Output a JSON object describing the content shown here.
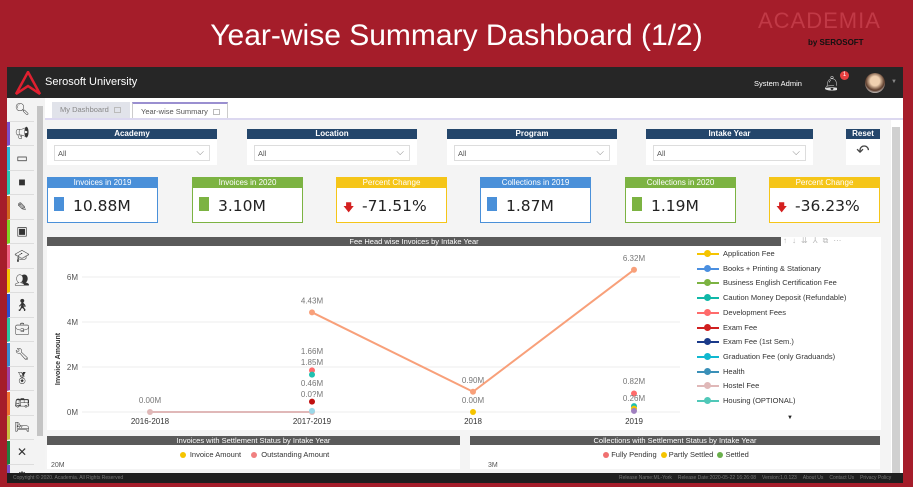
{
  "slide": {
    "title": "Year-wise Summary Dashboard (1/2)",
    "brand": "ACADEMIA",
    "brand_by": "by SEROSOFT"
  },
  "header": {
    "app_name": "Serosoft University",
    "user": "System Admin",
    "notifications": "1"
  },
  "sidebar": {
    "items": [
      {
        "icon": "megaphone-icon",
        "color": "#7b4fc9"
      },
      {
        "icon": "id-card-icon",
        "color": "#29b6d6"
      },
      {
        "icon": "book-icon",
        "color": "#2ac4b0"
      },
      {
        "icon": "edit-icon",
        "color": "#d2691e"
      },
      {
        "icon": "money-icon",
        "color": "#7ed321"
      },
      {
        "icon": "graduation-cap-icon",
        "color": "#f06080"
      },
      {
        "icon": "users-icon",
        "color": "#f5c400"
      },
      {
        "icon": "person-icon",
        "color": "#2a4fd0"
      },
      {
        "icon": "briefcase-icon",
        "color": "#2ac4a0"
      },
      {
        "icon": "wrench-icon",
        "color": "#3a8ad0"
      },
      {
        "icon": "award-icon",
        "color": "#a040a0"
      },
      {
        "icon": "bus-icon",
        "color": "#f07030"
      },
      {
        "icon": "bed-icon",
        "color": "#c8c040"
      },
      {
        "icon": "tools-icon",
        "color": "#208040"
      },
      {
        "icon": "settings-icon",
        "color": "#7b4fc9"
      }
    ]
  },
  "tabs": [
    {
      "label": "My Dashboard"
    },
    {
      "label": "Year-wise Summary",
      "active": true
    }
  ],
  "filters": [
    {
      "label": "Academy",
      "value": "All"
    },
    {
      "label": "Location",
      "value": "All"
    },
    {
      "label": "Program",
      "value": "All"
    },
    {
      "label": "Intake Year",
      "value": "All"
    }
  ],
  "reset_label": "Reset",
  "kpis": [
    {
      "label": "Invoices in 2019",
      "value": "10.88M",
      "color": "#4a90d9"
    },
    {
      "label": "Invoices in 2020",
      "value": "3.10M",
      "color": "#7cb342"
    },
    {
      "label": "Percent Change",
      "value": "-71.51%",
      "color": "#f5c518"
    },
    {
      "label": "Collections in 2019",
      "value": "1.87M",
      "color": "#4a90d9"
    },
    {
      "label": "Collections in 2020",
      "value": "1.19M",
      "color": "#7cb342"
    },
    {
      "label": "Percent Change",
      "value": "-36.23%",
      "color": "#f5c518"
    }
  ],
  "chart_data": {
    "type": "line",
    "title": "Fee Head wise Invoices by Intake Year",
    "ylabel": "Invoice Amount",
    "categories": [
      "2016-2018",
      "2017-2019",
      "2018",
      "2019"
    ],
    "yticks": [
      "0M",
      "2M",
      "4M",
      "6M"
    ],
    "ylim": [
      0,
      7
    ],
    "grid": true,
    "legend_position": "right",
    "legend": [
      {
        "name": "Application Fee",
        "color": "#f5c400"
      },
      {
        "name": "Books + Printing & Stationary",
        "color": "#4a8fe0"
      },
      {
        "name": "Business English Certification Fee",
        "color": "#7cb342"
      },
      {
        "name": "Caution Money Deposit (Refundable)",
        "color": "#10b8a8"
      },
      {
        "name": "Development Fees",
        "color": "#ff6b6b"
      },
      {
        "name": "Exam Fee",
        "color": "#d02020"
      },
      {
        "name": "Exam Fee (1st Sem.)",
        "color": "#1a3a8a"
      },
      {
        "name": "Graduation Fee (only Graduands)",
        "color": "#10b8d0"
      },
      {
        "name": "Health",
        "color": "#3a90b8"
      },
      {
        "name": "Hostel Fee",
        "color": "#e0b8b8"
      },
      {
        "name": "Housing (OPTIONAL)",
        "color": "#50c8b8"
      }
    ],
    "series": [
      {
        "color": "#f8a07a",
        "values": [
          null,
          4.43,
          0.9,
          6.32
        ],
        "labels": [
          "",
          "4.43M",
          "0.90M",
          "6.32M"
        ],
        "line": true
      },
      {
        "color": "#e0b8b8",
        "values": [
          0.0,
          0.0,
          null,
          null
        ],
        "labels": [
          "0.00M",
          "",
          "",
          ""
        ],
        "line": true
      },
      {
        "color": "#ff6b6b",
        "values": [
          null,
          1.85,
          null,
          0.82
        ],
        "labels": [
          "",
          "1.85M",
          "",
          "0.82M"
        ]
      },
      {
        "color": "#20c0b0",
        "values": [
          null,
          1.66,
          null,
          0.26
        ],
        "labels": [
          "",
          "1.66M",
          "",
          "0.26M"
        ]
      },
      {
        "color": "#c01010",
        "values": [
          null,
          0.46,
          null,
          null
        ],
        "labels": [
          "",
          "0.46M",
          "",
          ""
        ]
      },
      {
        "color": "#9ad8e8",
        "values": [
          null,
          0.05,
          null,
          null
        ],
        "labels": [
          "",
          "0.0?M",
          "",
          ""
        ]
      },
      {
        "color": "#f5c400",
        "values": [
          null,
          null,
          0.0,
          0.15
        ],
        "labels": [
          "",
          "",
          "0.00M",
          ""
        ]
      },
      {
        "color": "#a080c0",
        "values": [
          null,
          null,
          null,
          0.05
        ],
        "labels": [
          "",
          "",
          "",
          ""
        ]
      }
    ]
  },
  "bottom_panels": [
    {
      "title": "Invoices with Settlement Status by Intake Year",
      "legend": [
        {
          "name": "Invoice Amount",
          "color": "#f5c400"
        },
        {
          "name": "Outstanding Amount",
          "color": "#f08080"
        }
      ],
      "ytop": "20M"
    },
    {
      "title": "Collections with Settlement Status by Intake Year",
      "legend": [
        {
          "name": "Fully Pending",
          "color": "#f07070"
        },
        {
          "name": "Partly Settled",
          "color": "#f5c400"
        },
        {
          "name": "Settled",
          "color": "#6ab04c"
        }
      ],
      "ytop": "3M"
    }
  ],
  "footer": {
    "copyright": "Copyright © 2020. Academia. All Rights Reserved",
    "release_name": "Release Name:ML-York",
    "release_date": "Release Date:2020-05-22 16:26:08",
    "version": "Version:1.0.123",
    "about": "About Us",
    "contact": "Contact Us",
    "privacy": "Privacy Policy"
  }
}
